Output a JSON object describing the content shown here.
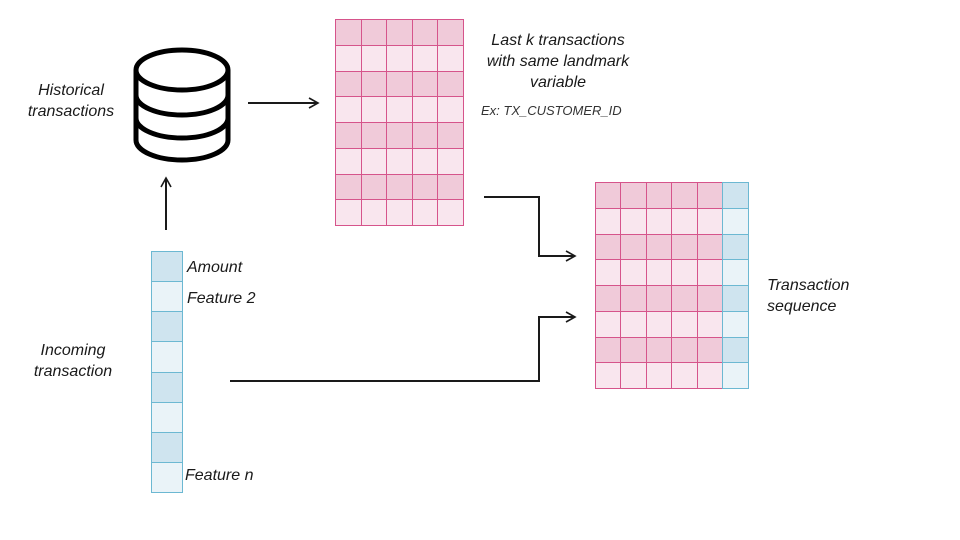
{
  "labels": {
    "historical": [
      "Historical",
      "transactions"
    ],
    "incoming": [
      "Incoming",
      "transaction"
    ],
    "last_k": [
      "Last k transactions",
      "with same landmark",
      "variable"
    ],
    "example": "Ex: TX_CUSTOMER_ID",
    "sequence": [
      "Transaction",
      "sequence"
    ],
    "feature_amount": "Amount",
    "feature_2": "Feature 2",
    "feature_n": "Feature n"
  },
  "colors": {
    "pink_dark": "#f0cad9",
    "pink_light": "#f9e6ee",
    "pink_border": "#d6548b",
    "blue_dark": "#cfe4ef",
    "blue_light": "#eaf3f8",
    "blue_border": "#6cb8d2",
    "arrow": "#1a1a1a"
  },
  "icons": {
    "database": "database-icon"
  }
}
